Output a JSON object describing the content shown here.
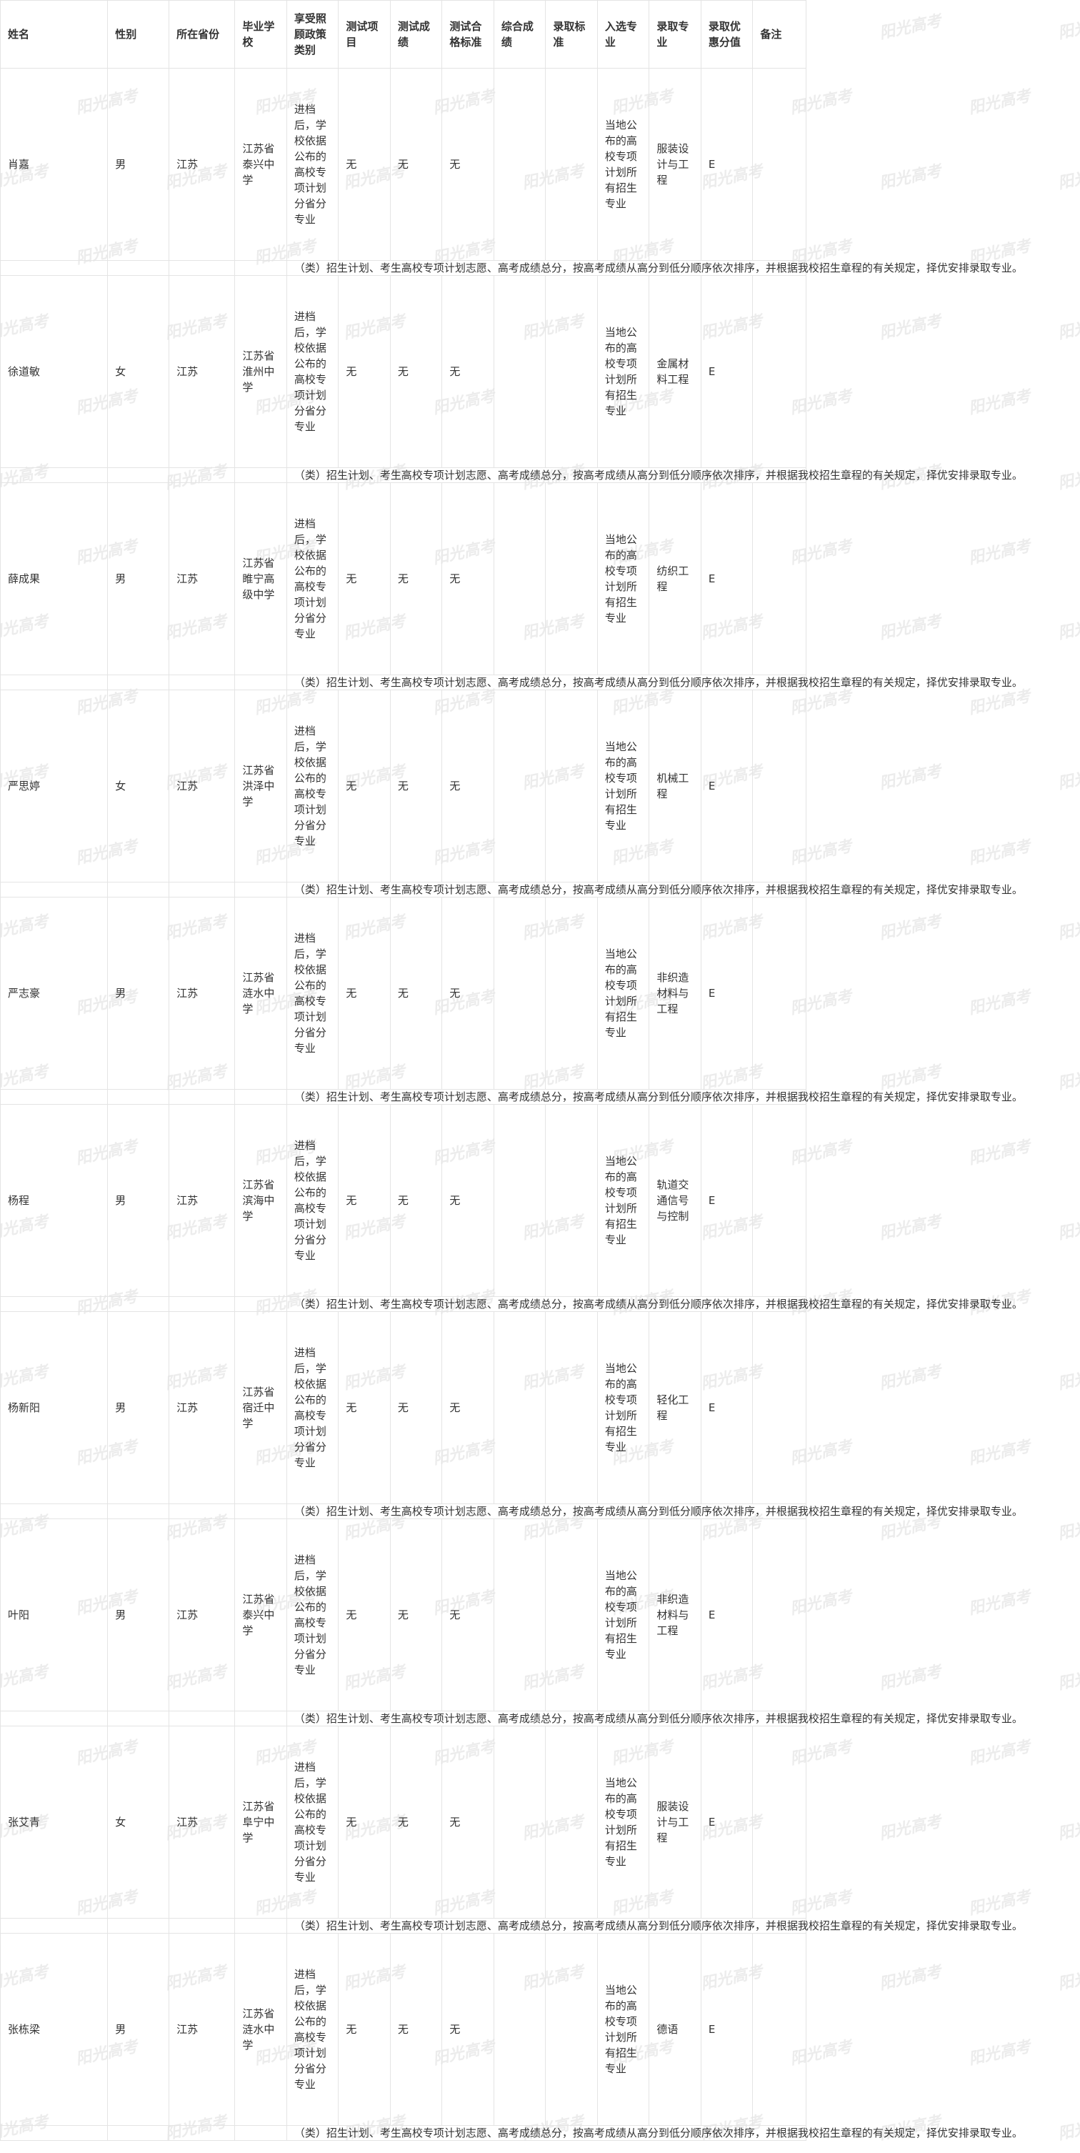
{
  "watermark": "阳光高考",
  "table": {
    "headers": [
      "姓名",
      "性别",
      "所在省份",
      "毕业学校",
      "享受照顾政策类别",
      "测试项目",
      "测试成绩",
      "测试合格标准",
      "综合成绩",
      "录取标准",
      "入选专业",
      "录取专业",
      "录取优惠分值",
      "备注"
    ],
    "rows": [
      {
        "name": "肖嘉",
        "gender": "男",
        "province": "江苏",
        "school": "江苏省泰兴中学",
        "policy": "进档后，学校依据公布的高校专项计划分省分专业",
        "test_item": "无",
        "test_score": "无",
        "test_pass": "无",
        "composite": "",
        "standard": "",
        "selected_major": "当地公布的高校专项计划所有招生专业",
        "admitted_major": "服装设计与工程",
        "bonus": "E",
        "remark": "",
        "rule": "（类）招生计划、考生高校专项计划志愿、高考成绩总分，按高考成绩从高分到低分顺序依次排序，并根据我校招生章程的有关规定，择优安排录取专业。"
      },
      {
        "name": "徐道敏",
        "gender": "女",
        "province": "江苏",
        "school": "江苏省淮州中学",
        "policy": "进档后，学校依据公布的高校专项计划分省分专业",
        "test_item": "无",
        "test_score": "无",
        "test_pass": "无",
        "composite": "",
        "standard": "",
        "selected_major": "当地公布的高校专项计划所有招生专业",
        "admitted_major": "金属材料工程",
        "bonus": "E",
        "remark": "",
        "rule": "（类）招生计划、考生高校专项计划志愿、高考成绩总分，按高考成绩从高分到低分顺序依次排序，并根据我校招生章程的有关规定，择优安排录取专业。"
      },
      {
        "name": "薛成果",
        "gender": "男",
        "province": "江苏",
        "school": "江苏省睢宁高级中学",
        "policy": "进档后，学校依据公布的高校专项计划分省分专业",
        "test_item": "无",
        "test_score": "无",
        "test_pass": "无",
        "composite": "",
        "standard": "",
        "selected_major": "当地公布的高校专项计划所有招生专业",
        "admitted_major": "纺织工程",
        "bonus": "E",
        "remark": "",
        "rule": "（类）招生计划、考生高校专项计划志愿、高考成绩总分，按高考成绩从高分到低分顺序依次排序，并根据我校招生章程的有关规定，择优安排录取专业。"
      },
      {
        "name": "严思婷",
        "gender": "女",
        "province": "江苏",
        "school": "江苏省洪泽中学",
        "policy": "进档后，学校依据公布的高校专项计划分省分专业",
        "test_item": "无",
        "test_score": "无",
        "test_pass": "无",
        "composite": "",
        "standard": "",
        "selected_major": "当地公布的高校专项计划所有招生专业",
        "admitted_major": "机械工程",
        "bonus": "E",
        "remark": "",
        "rule": "（类）招生计划、考生高校专项计划志愿、高考成绩总分，按高考成绩从高分到低分顺序依次排序，并根据我校招生章程的有关规定，择优安排录取专业。"
      },
      {
        "name": "严志豪",
        "gender": "男",
        "province": "江苏",
        "school": "江苏省涟水中学",
        "policy": "进档后，学校依据公布的高校专项计划分省分专业",
        "test_item": "无",
        "test_score": "无",
        "test_pass": "无",
        "composite": "",
        "standard": "",
        "selected_major": "当地公布的高校专项计划所有招生专业",
        "admitted_major": "非织造材料与工程",
        "bonus": "E",
        "remark": "",
        "rule": "（类）招生计划、考生高校专项计划志愿、高考成绩总分，按高考成绩从高分到低分顺序依次排序，并根据我校招生章程的有关规定，择优安排录取专业。"
      },
      {
        "name": "杨程",
        "gender": "男",
        "province": "江苏",
        "school": "江苏省滨海中学",
        "policy": "进档后，学校依据公布的高校专项计划分省分专业",
        "test_item": "无",
        "test_score": "无",
        "test_pass": "无",
        "composite": "",
        "standard": "",
        "selected_major": "当地公布的高校专项计划所有招生专业",
        "admitted_major": "轨道交通信号与控制",
        "bonus": "E",
        "remark": "",
        "rule": "（类）招生计划、考生高校专项计划志愿、高考成绩总分，按高考成绩从高分到低分顺序依次排序，并根据我校招生章程的有关规定，择优安排录取专业。"
      },
      {
        "name": "杨新阳",
        "gender": "男",
        "province": "江苏",
        "school": "江苏省宿迁中学",
        "policy": "进档后，学校依据公布的高校专项计划分省分专业",
        "test_item": "无",
        "test_score": "无",
        "test_pass": "无",
        "composite": "",
        "standard": "",
        "selected_major": "当地公布的高校专项计划所有招生专业",
        "admitted_major": "轻化工程",
        "bonus": "E",
        "remark": "",
        "rule": "（类）招生计划、考生高校专项计划志愿、高考成绩总分，按高考成绩从高分到低分顺序依次排序，并根据我校招生章程的有关规定，择优安排录取专业。"
      },
      {
        "name": "叶阳",
        "gender": "男",
        "province": "江苏",
        "school": "江苏省泰兴中学",
        "policy": "进档后，学校依据公布的高校专项计划分省分专业",
        "test_item": "无",
        "test_score": "无",
        "test_pass": "无",
        "composite": "",
        "standard": "",
        "selected_major": "当地公布的高校专项计划所有招生专业",
        "admitted_major": "非织造材料与工程",
        "bonus": "E",
        "remark": "",
        "rule": "（类）招生计划、考生高校专项计划志愿、高考成绩总分，按高考成绩从高分到低分顺序依次排序，并根据我校招生章程的有关规定，择优安排录取专业。"
      },
      {
        "name": "张艾青",
        "gender": "女",
        "province": "江苏",
        "school": "江苏省阜宁中学",
        "policy": "进档后，学校依据公布的高校专项计划分省分专业",
        "test_item": "无",
        "test_score": "无",
        "test_pass": "无",
        "composite": "",
        "standard": "",
        "selected_major": "当地公布的高校专项计划所有招生专业",
        "admitted_major": "服装设计与工程",
        "bonus": "E",
        "remark": "",
        "rule": "（类）招生计划、考生高校专项计划志愿、高考成绩总分，按高考成绩从高分到低分顺序依次排序，并根据我校招生章程的有关规定，择优安排录取专业。"
      },
      {
        "name": "张栋梁",
        "gender": "男",
        "province": "江苏",
        "school": "江苏省涟水中学",
        "policy": "进档后，学校依据公布的高校专项计划分省分专业",
        "test_item": "无",
        "test_score": "无",
        "test_pass": "无",
        "composite": "",
        "standard": "",
        "selected_major": "当地公布的高校专项计划所有招生专业",
        "admitted_major": "德语",
        "bonus": "E",
        "remark": "",
        "rule": "（类）招生计划、考生高校专项计划志愿、高考成绩总分，按高考成绩从高分到低分顺序依次排序，并根据我校招生章程的有关规定，择优安排录取专业。"
      }
    ]
  }
}
